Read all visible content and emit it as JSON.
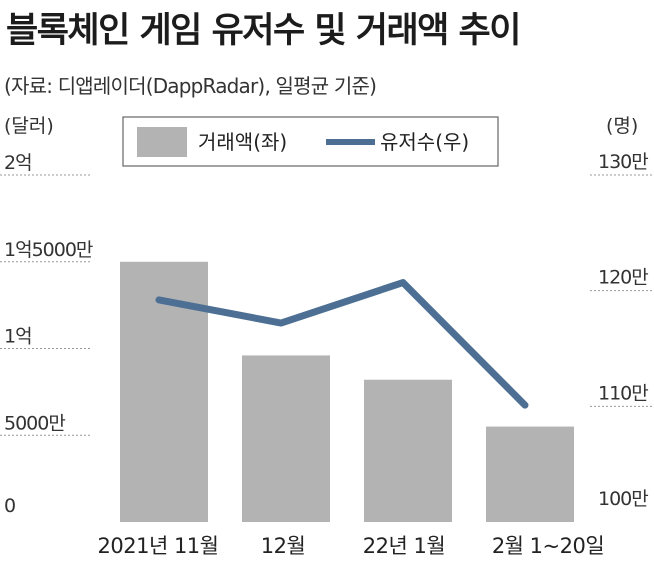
{
  "title": "블록체인 게임 유저수 및 거래액 추이",
  "subtitle": "(자료: 디앱레이더(DappRadar), 일평균 기준)",
  "colors": {
    "bar": "#b3b3b3",
    "line": "#4d6f94",
    "grid": "#999999"
  },
  "chart_data": {
    "type": "bar+line",
    "categories": [
      "2021년 11월",
      "12월",
      "22년 1월",
      "2월 1~20일"
    ],
    "series": [
      {
        "name": "거래액(좌)",
        "type": "bar",
        "axis": "left",
        "values": [
          150000000,
          96000000,
          82000000,
          55000000
        ]
      },
      {
        "name": "유저수(우)",
        "type": "line",
        "axis": "right",
        "values": [
          1192000,
          1172000,
          1207000,
          1101000
        ]
      }
    ],
    "left_axis": {
      "unit": "(달러)",
      "ylim": [
        0,
        200000000
      ],
      "ticks": [
        0,
        50000000,
        100000000,
        150000000,
        200000000
      ],
      "tick_labels": [
        "0",
        "5000만",
        "1억",
        "1억5000만",
        "2억"
      ]
    },
    "right_axis": {
      "unit": "(명)",
      "ylim": [
        1000000,
        1300000
      ],
      "ticks": [
        1000000,
        1100000,
        1200000,
        1300000
      ],
      "tick_labels": [
        "100만",
        "110만",
        "120만",
        "130만"
      ]
    },
    "grid": "dotted horizontal",
    "legend_position": "top"
  }
}
